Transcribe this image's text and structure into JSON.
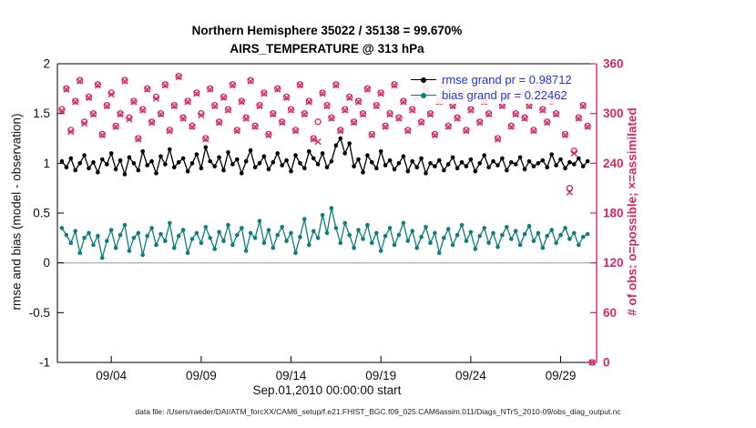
{
  "title": {
    "line1": "Northern Hemisphere 35022 / 35138 = 99.670%",
    "line2": "AIRS_TEMPERATURE @ 313 hPa"
  },
  "legend": {
    "rmse_label": "rmse grand pr = 0.98712",
    "bias_label": "bias grand pr = 0.22462"
  },
  "caption": "data file: /Users/raeder/DAI/ATM_forcXX/CAM6_setup/f.e21.FHIST_BGC.f09_025.CAM6assim.011/Diags_NTrS_2010-09/obs_diag_output.nc",
  "colors": {
    "rmse": "#000000",
    "bias": "#0f7d7d",
    "obs": "#d62963",
    "legend_text": "#2233dd",
    "zero_line": "#b5b5b5"
  },
  "chart_data": {
    "type": "line",
    "title": "Northern Hemisphere 35022 / 35138 = 99.670%",
    "subtitle": "AIRS_TEMPERATURE @ 313 hPa",
    "xlabel": "Sep.01,2010 00:00:00 start",
    "ylabel": "rmse and bias (model - observation)",
    "y2label": "# of obs: o=possible; ×=assimilated",
    "ylim": [
      -1,
      2
    ],
    "y2lim": [
      0,
      360
    ],
    "y_ticks": [
      -1,
      -0.5,
      0,
      0.5,
      1,
      1.5,
      2
    ],
    "y_tick_labels": [
      "-1",
      "-0.5",
      "0",
      "0.5",
      "1",
      "1.5",
      "2"
    ],
    "y2_ticks": [
      0,
      60,
      120,
      180,
      240,
      300,
      360
    ],
    "x_ticks_days": [
      3,
      8,
      13,
      18,
      23,
      28
    ],
    "x_tick_labels": [
      "09/04",
      "09/09",
      "09/14",
      "09/19",
      "09/24",
      "09/29"
    ],
    "x_range_days": [
      0,
      30
    ],
    "x_start_days": 0.25,
    "x_step_days": 0.25,
    "zero_reference_line": 0,
    "series": [
      {
        "name": "rmse",
        "axis": "left",
        "color": "#000000",
        "marker": "filled-circle",
        "grand_mean": 0.98712,
        "values": [
          1.02,
          0.96,
          1.05,
          0.93,
          1.0,
          1.08,
          0.95,
          1.01,
          0.91,
          1.04,
          0.99,
          1.1,
          0.94,
          1.03,
          0.89,
          1.06,
          1.0,
          0.93,
          1.12,
          0.98,
          1.02,
          0.9,
          1.07,
          0.99,
          1.14,
          0.96,
          1.01,
          1.05,
          0.92,
          1.0,
          1.09,
          0.95,
          1.16,
          1.02,
          0.97,
          1.06,
          0.93,
          1.11,
          0.99,
          1.04,
          0.9,
          1.02,
          1.13,
          0.96,
          1.0,
          1.07,
          0.94,
          1.01,
          1.1,
          0.98,
          1.03,
          0.92,
          1.08,
          1.0,
          0.95,
          1.12,
          1.05,
          0.99,
          1.1,
          0.96,
          1.02,
          1.18,
          1.25,
          1.1,
          1.2,
          0.97,
          1.04,
          0.91,
          1.08,
          1.01,
          0.95,
          1.12,
          0.98,
          1.03,
          0.94,
          1.0,
          1.07,
          0.92,
          1.02,
          0.96,
          1.05,
          0.9,
          1.0,
          0.97,
          1.03,
          0.93,
          0.99,
          1.06,
          0.95,
          1.01,
          0.97,
          1.04,
          0.92,
          1.0,
          1.08,
          0.96,
          1.02,
          0.98,
          1.05,
          0.93,
          1.01,
          0.99,
          1.06,
          0.94,
          1.02,
          0.97,
          1.0,
          1.03,
          0.96,
          1.09,
          0.98,
          1.04,
          0.95,
          1.01,
          0.99,
          1.05,
          0.97,
          1.02,
          null
        ]
      },
      {
        "name": "bias",
        "axis": "left",
        "color": "#0f7d7d",
        "marker": "filled-circle",
        "grand_mean": 0.22462,
        "values": [
          0.35,
          0.28,
          0.2,
          0.32,
          0.1,
          0.25,
          0.3,
          0.18,
          0.27,
          0.05,
          0.22,
          0.33,
          0.15,
          0.28,
          0.38,
          0.12,
          0.25,
          0.3,
          0.08,
          0.27,
          0.35,
          0.18,
          0.29,
          0.22,
          0.4,
          0.15,
          0.27,
          0.33,
          0.1,
          0.24,
          0.3,
          0.2,
          0.36,
          0.25,
          0.14,
          0.31,
          0.22,
          0.38,
          0.18,
          0.28,
          0.35,
          0.12,
          0.3,
          0.25,
          0.42,
          0.2,
          0.33,
          0.15,
          0.28,
          0.36,
          0.22,
          0.3,
          0.1,
          0.26,
          0.44,
          0.18,
          0.32,
          0.25,
          0.48,
          0.3,
          0.55,
          0.35,
          0.2,
          0.4,
          0.28,
          0.15,
          0.33,
          0.24,
          0.38,
          0.2,
          0.3,
          0.12,
          0.27,
          0.35,
          0.18,
          0.28,
          0.4,
          0.22,
          0.32,
          0.15,
          0.26,
          0.36,
          0.2,
          0.3,
          0.1,
          0.25,
          0.34,
          0.18,
          0.28,
          0.38,
          0.22,
          0.31,
          0.14,
          0.27,
          0.35,
          0.2,
          0.3,
          0.16,
          0.28,
          0.36,
          0.24,
          0.32,
          0.18,
          0.29,
          0.37,
          0.22,
          0.3,
          0.15,
          0.27,
          0.33,
          0.2,
          0.28,
          0.35,
          0.24,
          0.3,
          0.18,
          0.26,
          0.29,
          null
        ]
      },
      {
        "name": "possible",
        "axis": "right",
        "color": "#d62963",
        "marker": "open-circle",
        "total": 35138,
        "values": [
          305,
          330,
          280,
          315,
          340,
          290,
          320,
          300,
          335,
          275,
          310,
          325,
          285,
          300,
          340,
          295,
          315,
          270,
          305,
          330,
          290,
          320,
          300,
          335,
          280,
          310,
          345,
          295,
          315,
          285,
          325,
          300,
          270,
          330,
          310,
          290,
          320,
          305,
          335,
          280,
          315,
          295,
          340,
          285,
          310,
          325,
          275,
          300,
          330,
          290,
          320,
          305,
          280,
          335,
          300,
          315,
          270,
          290,
          325,
          310,
          295,
          335,
          280,
          305,
          320,
          290,
          315,
          300,
          330,
          275,
          310,
          325,
          285,
          300,
          335,
          295,
          315,
          280,
          305,
          320,
          290,
          330,
          300,
          275,
          315,
          335,
          285,
          310,
          295,
          325,
          280,
          305,
          330,
          290,
          315,
          300,
          335,
          270,
          310,
          320,
          285,
          300,
          325,
          295,
          310,
          280,
          330,
          305,
          290,
          315,
          300,
          320,
          275,
          210,
          255,
          295,
          310,
          285,
          0
        ]
      },
      {
        "name": "assimilated",
        "axis": "right",
        "color": "#d62963",
        "marker": "x",
        "total": 35022,
        "values": [
          303,
          329,
          278,
          314,
          339,
          288,
          319,
          299,
          334,
          274,
          309,
          323,
          284,
          299,
          339,
          293,
          314,
          269,
          304,
          329,
          289,
          318,
          299,
          334,
          279,
          309,
          344,
          294,
          314,
          284,
          324,
          298,
          269,
          329,
          309,
          289,
          319,
          304,
          334,
          279,
          314,
          294,
          339,
          284,
          309,
          324,
          274,
          299,
          329,
          289,
          319,
          304,
          279,
          334,
          299,
          314,
          269,
          266,
          324,
          309,
          294,
          334,
          279,
          304,
          319,
          289,
          314,
          299,
          329,
          274,
          309,
          324,
          284,
          299,
          334,
          294,
          314,
          279,
          304,
          319,
          289,
          329,
          299,
          274,
          314,
          334,
          284,
          309,
          294,
          324,
          279,
          304,
          329,
          289,
          314,
          299,
          334,
          269,
          309,
          319,
          284,
          299,
          324,
          294,
          309,
          279,
          329,
          304,
          289,
          315,
          299,
          319,
          274,
          205,
          252,
          294,
          309,
          284,
          0
        ]
      }
    ]
  }
}
